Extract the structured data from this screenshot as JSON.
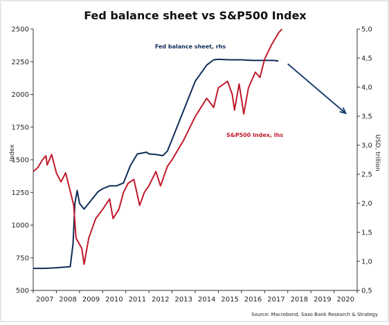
{
  "chart_data": {
    "type": "line",
    "title": "Fed balance sheet vs S&P500 Index",
    "source": "Source: Macrobond, Saxo Bank Research & Strategy",
    "x_ticks": [
      "2007",
      "2008",
      "2009",
      "2010",
      "2011",
      "2012",
      "2013",
      "2014",
      "2015",
      "2016",
      "2017",
      "2018",
      "2019",
      "2020"
    ],
    "xlim": [
      2007,
      2021
    ],
    "left_axis": {
      "label": "Index",
      "ylim": [
        500,
        2500
      ],
      "ticks": [
        "500",
        "750",
        "1000",
        "1250",
        "1500",
        "1750",
        "2000",
        "2250",
        "2500"
      ]
    },
    "right_axis": {
      "label": "USD, trillion",
      "ylim": [
        0.5,
        5.0
      ],
      "ticks": [
        "0,5",
        "1,0",
        "1,5",
        "2,0",
        "2,5",
        "3,0",
        "3,5",
        "4,0",
        "4,5",
        "5,0"
      ]
    },
    "series": [
      {
        "name": "Fed balance sheet, rhs",
        "axis": "right",
        "color": "#0d2b56",
        "points": [
          [
            2007.0,
            0.88
          ],
          [
            2007.5,
            0.88
          ],
          [
            2008.0,
            0.89
          ],
          [
            2008.6,
            0.91
          ],
          [
            2008.72,
            1.3
          ],
          [
            2008.8,
            2.0
          ],
          [
            2008.9,
            2.22
          ],
          [
            2009.0,
            2.0
          ],
          [
            2009.2,
            1.9
          ],
          [
            2009.5,
            2.05
          ],
          [
            2009.8,
            2.2
          ],
          [
            2010.0,
            2.25
          ],
          [
            2010.3,
            2.3
          ],
          [
            2010.6,
            2.3
          ],
          [
            2010.9,
            2.35
          ],
          [
            2011.2,
            2.65
          ],
          [
            2011.5,
            2.85
          ],
          [
            2011.9,
            2.88
          ],
          [
            2012.0,
            2.85
          ],
          [
            2012.3,
            2.84
          ],
          [
            2012.6,
            2.82
          ],
          [
            2012.8,
            2.9
          ],
          [
            2013.0,
            3.1
          ],
          [
            2013.5,
            3.6
          ],
          [
            2014.0,
            4.1
          ],
          [
            2014.5,
            4.38
          ],
          [
            2014.8,
            4.47
          ],
          [
            2015.0,
            4.48
          ],
          [
            2015.5,
            4.47
          ],
          [
            2016.0,
            4.47
          ],
          [
            2016.5,
            4.46
          ],
          [
            2017.0,
            4.46
          ],
          [
            2017.4,
            4.46
          ],
          [
            2017.6,
            4.45
          ]
        ]
      },
      {
        "name": "S&P500 Index, lhs",
        "axis": "left",
        "color": "#c0182a",
        "points": [
          [
            2007.0,
            1410
          ],
          [
            2007.2,
            1440
          ],
          [
            2007.4,
            1500
          ],
          [
            2007.55,
            1530
          ],
          [
            2007.6,
            1460
          ],
          [
            2007.8,
            1540
          ],
          [
            2008.0,
            1400
          ],
          [
            2008.2,
            1330
          ],
          [
            2008.4,
            1400
          ],
          [
            2008.6,
            1260
          ],
          [
            2008.75,
            1150
          ],
          [
            2008.85,
            900
          ],
          [
            2008.95,
            870
          ],
          [
            2009.1,
            820
          ],
          [
            2009.2,
            700
          ],
          [
            2009.4,
            900
          ],
          [
            2009.7,
            1050
          ],
          [
            2010.0,
            1120
          ],
          [
            2010.3,
            1200
          ],
          [
            2010.45,
            1050
          ],
          [
            2010.7,
            1120
          ],
          [
            2010.9,
            1250
          ],
          [
            2011.1,
            1320
          ],
          [
            2011.35,
            1350
          ],
          [
            2011.6,
            1150
          ],
          [
            2011.8,
            1250
          ],
          [
            2012.0,
            1300
          ],
          [
            2012.3,
            1410
          ],
          [
            2012.5,
            1300
          ],
          [
            2012.8,
            1450
          ],
          [
            2013.0,
            1500
          ],
          [
            2013.5,
            1650
          ],
          [
            2014.0,
            1830
          ],
          [
            2014.5,
            1970
          ],
          [
            2014.8,
            1900
          ],
          [
            2015.0,
            2050
          ],
          [
            2015.4,
            2100
          ],
          [
            2015.6,
            2000
          ],
          [
            2015.7,
            1880
          ],
          [
            2015.9,
            2080
          ],
          [
            2016.1,
            1850
          ],
          [
            2016.3,
            2050
          ],
          [
            2016.6,
            2170
          ],
          [
            2016.8,
            2130
          ],
          [
            2017.0,
            2270
          ],
          [
            2017.3,
            2380
          ],
          [
            2017.6,
            2470
          ],
          [
            2017.75,
            2500
          ]
        ]
      }
    ],
    "annotations": [
      {
        "text": "Fed balance sheet, rhs",
        "color": "#0d2b56"
      },
      {
        "text": "S&P500 Index, lhs",
        "color": "#c0182a"
      }
    ],
    "arrow": {
      "from": [
        2018.0,
        4.4
      ],
      "to": [
        2020.5,
        3.55
      ],
      "color": "#1c3f6e"
    },
    "grid": false
  }
}
